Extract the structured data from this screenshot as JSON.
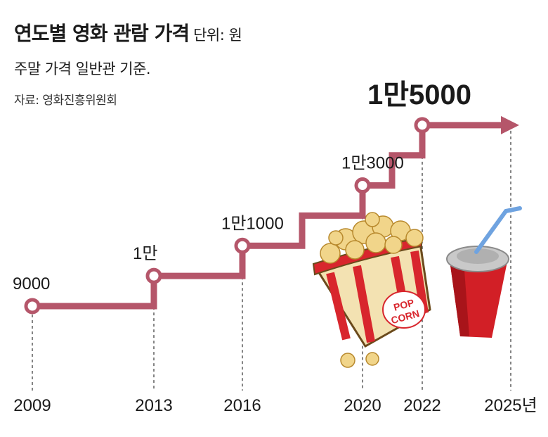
{
  "header": {
    "title": "연도별 영화 관람 가격",
    "unit": "단위: 원",
    "subtitle": "주말 가격 일반관 기준.",
    "source": "자료: 영화진흥위원회"
  },
  "colors": {
    "step_line": "#b5566a",
    "marker_fill": "#ffffff",
    "guide": "#333333"
  },
  "decoration": {
    "illustration": "popcorn-bucket-and-soda-cup",
    "popcorn_text": [
      "POP",
      "CORN"
    ]
  },
  "chart_data": {
    "type": "line",
    "step": true,
    "title": "연도별 영화 관람 가격",
    "unit": "원",
    "x": [
      2009,
      2013,
      2016,
      2020,
      2022
    ],
    "values": [
      9000,
      10000,
      11000,
      13000,
      15000
    ],
    "value_labels": [
      "9000",
      "1만",
      "1만1000",
      "1만3000",
      "1만5000"
    ],
    "x_tick_labels": [
      "2009",
      "2013",
      "2016",
      "2020",
      "2022",
      "2025년"
    ],
    "arrow_extends_to": "2025년",
    "highlight_last": true,
    "grid": false,
    "xlabel": "",
    "ylabel": ""
  }
}
